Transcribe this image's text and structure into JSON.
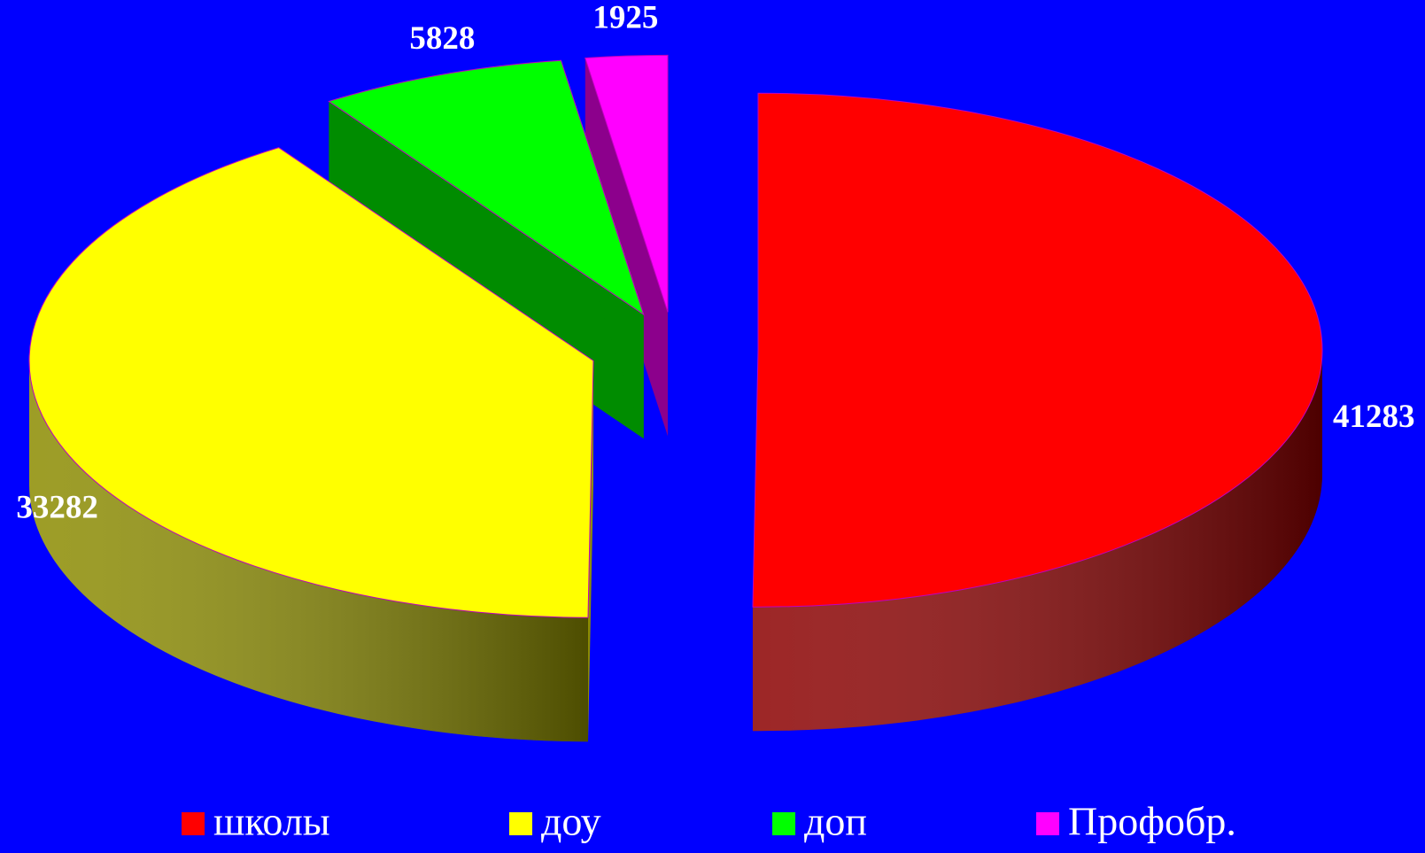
{
  "chart_data": {
    "type": "pie",
    "categories": [
      "школы",
      "доу",
      "доп",
      "Профобр."
    ],
    "values": [
      41283,
      33282,
      5828,
      1925
    ],
    "colors": [
      "#ff0000",
      "#ffff00",
      "#00ff00",
      "#ff00ff"
    ],
    "legend": "bottom"
  }
}
